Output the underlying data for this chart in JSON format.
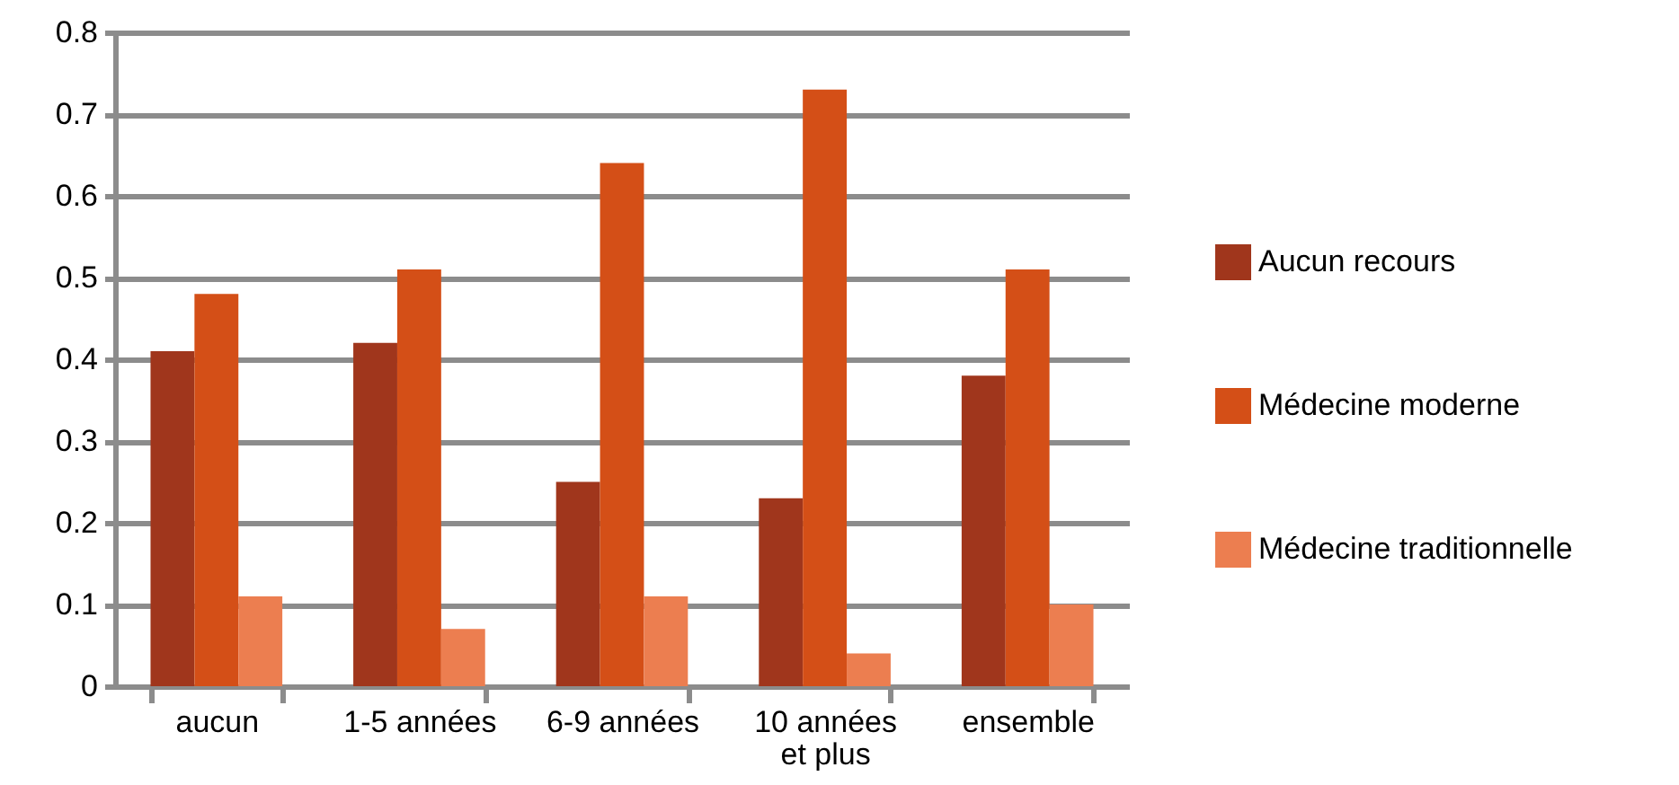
{
  "chart_data": {
    "type": "bar",
    "categories": [
      "aucun",
      "1-5 années",
      "6-9 années",
      "10 années\net plus",
      "ensemble"
    ],
    "series": [
      {
        "name": "Aucun recours",
        "color": "#a0361c",
        "values": [
          0.41,
          0.42,
          0.25,
          0.23,
          0.38
        ]
      },
      {
        "name": "Médecine moderne",
        "color": "#d44f17",
        "values": [
          0.48,
          0.51,
          0.64,
          0.73,
          0.51
        ]
      },
      {
        "name": "Médecine traditionnelle",
        "color": "#ec7e50",
        "values": [
          0.11,
          0.07,
          0.11,
          0.04,
          0.1
        ]
      }
    ],
    "ylim": [
      0,
      0.8
    ],
    "yticks": [
      0,
      0.1,
      0.2,
      0.3,
      0.4,
      0.5,
      0.6,
      0.7,
      0.8
    ],
    "grid": "y",
    "legend": "right"
  }
}
